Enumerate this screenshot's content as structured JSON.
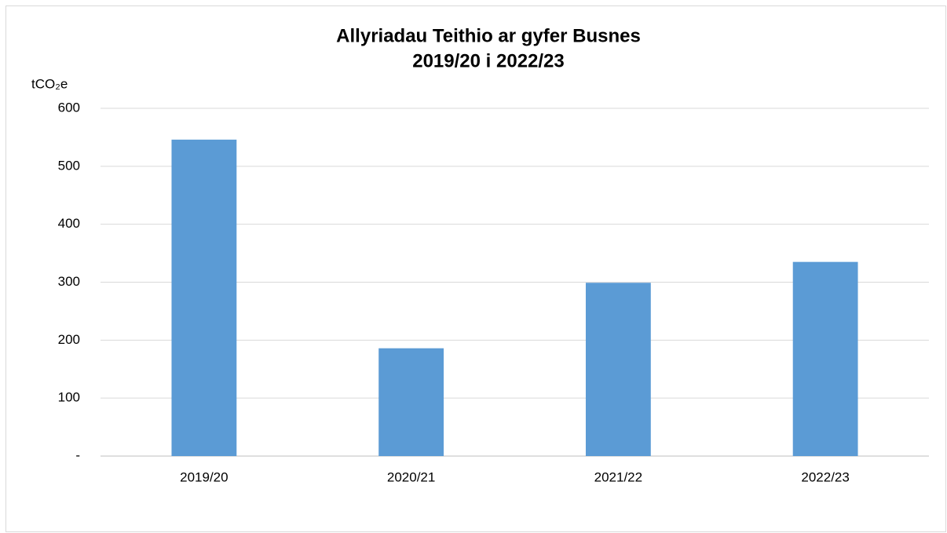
{
  "chart_data": {
    "type": "bar",
    "title": [
      "Allyriadau Teithio ar gyfer Busnes",
      "2019/20 i 2022/23"
    ],
    "y_label": "tCO₂e",
    "categories": [
      "2019/20",
      "2020/21",
      "2021/22",
      "2022/23"
    ],
    "values": [
      546,
      186,
      299,
      335
    ],
    "color": "#5b9bd5",
    "ylim": [
      0,
      600
    ],
    "yticks": [
      {
        "value": 0,
        "label": "-"
      },
      100,
      200,
      300,
      400,
      500,
      600
    ],
    "grid": true
  }
}
